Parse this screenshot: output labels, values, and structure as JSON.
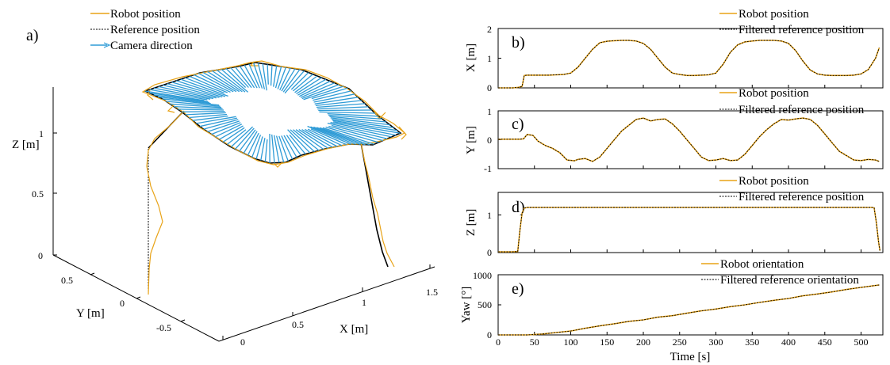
{
  "colors": {
    "robot": "#E8A317",
    "reference": "#000000",
    "camera": "#2E9BD6",
    "axis": "#000000"
  },
  "chart_data": [
    {
      "id": "a",
      "type": "line3d",
      "panel_label": "a)",
      "legend": [
        "Robot position",
        "Reference position",
        "Camera direction"
      ],
      "xlabel": "X [m]",
      "ylabel": "Y [m]",
      "zlabel": "Z [m]",
      "xticks": [
        "0",
        "0.5",
        "1",
        "1.5"
      ],
      "yticks": [
        "0.5",
        "0",
        "-0.5"
      ],
      "zticks": [
        "0",
        "0.5",
        "1"
      ],
      "xlim": [
        0,
        1.8
      ],
      "ylim": [
        -0.9,
        0.8
      ],
      "zlim": [
        0,
        1.35
      ]
    },
    {
      "id": "b",
      "type": "line",
      "panel_label": "b)",
      "ylabel": "X [m]",
      "yticks": [
        "0",
        "1",
        "2"
      ],
      "ylim": [
        0,
        2
      ],
      "xlim": [
        0,
        530
      ],
      "series": [
        {
          "name": "Robot position",
          "x": [
            0,
            20,
            28,
            33,
            36,
            40,
            50,
            60,
            70,
            80,
            90,
            100,
            110,
            120,
            130,
            140,
            150,
            160,
            170,
            180,
            190,
            200,
            210,
            220,
            230,
            240,
            250,
            260,
            270,
            280,
            290,
            300,
            310,
            320,
            330,
            340,
            350,
            360,
            370,
            380,
            390,
            400,
            410,
            420,
            430,
            440,
            450,
            460,
            470,
            480,
            490,
            500,
            510,
            520,
            525
          ],
          "y": [
            0,
            0,
            0.02,
            0.05,
            0.42,
            0.43,
            0.43,
            0.43,
            0.43,
            0.44,
            0.45,
            0.5,
            0.7,
            1.0,
            1.3,
            1.52,
            1.57,
            1.59,
            1.6,
            1.6,
            1.58,
            1.5,
            1.3,
            1.0,
            0.7,
            0.5,
            0.45,
            0.42,
            0.42,
            0.43,
            0.44,
            0.5,
            0.8,
            1.2,
            1.45,
            1.55,
            1.58,
            1.6,
            1.6,
            1.6,
            1.58,
            1.5,
            1.25,
            0.9,
            0.6,
            0.47,
            0.43,
            0.42,
            0.42,
            0.42,
            0.43,
            0.47,
            0.62,
            1.0,
            1.35
          ]
        },
        {
          "name": "Filtered reference position",
          "x": [
            0,
            20,
            28,
            33,
            36,
            40,
            50,
            60,
            70,
            80,
            90,
            100,
            110,
            120,
            130,
            140,
            150,
            160,
            170,
            180,
            190,
            200,
            210,
            220,
            230,
            240,
            250,
            260,
            270,
            280,
            290,
            300,
            310,
            320,
            330,
            340,
            350,
            360,
            370,
            380,
            390,
            400,
            410,
            420,
            430,
            440,
            450,
            460,
            470,
            480,
            490,
            500,
            510,
            520,
            525
          ],
          "y": [
            0,
            0,
            0.02,
            0.05,
            0.42,
            0.43,
            0.43,
            0.43,
            0.43,
            0.44,
            0.45,
            0.5,
            0.7,
            1.0,
            1.3,
            1.52,
            1.57,
            1.59,
            1.6,
            1.6,
            1.58,
            1.5,
            1.3,
            1.0,
            0.7,
            0.5,
            0.45,
            0.42,
            0.42,
            0.43,
            0.44,
            0.5,
            0.8,
            1.2,
            1.45,
            1.55,
            1.58,
            1.6,
            1.6,
            1.6,
            1.58,
            1.5,
            1.25,
            0.9,
            0.6,
            0.47,
            0.43,
            0.42,
            0.42,
            0.42,
            0.43,
            0.47,
            0.62,
            1.0,
            1.35
          ]
        }
      ]
    },
    {
      "id": "c",
      "type": "line",
      "panel_label": "c)",
      "ylabel": "Y [m]",
      "yticks": [
        "-1",
        "0",
        "1"
      ],
      "ylim": [
        -1,
        1
      ],
      "xlim": [
        0,
        530
      ],
      "series": [
        {
          "name": "Robot position",
          "x": [
            0,
            30,
            35,
            40,
            48,
            55,
            65,
            75,
            85,
            95,
            105,
            110,
            120,
            130,
            140,
            150,
            160,
            170,
            180,
            190,
            200,
            210,
            220,
            230,
            240,
            250,
            260,
            270,
            280,
            290,
            300,
            310,
            320,
            330,
            340,
            350,
            360,
            370,
            380,
            390,
            400,
            410,
            420,
            430,
            440,
            450,
            460,
            470,
            480,
            490,
            500,
            510,
            520,
            525
          ],
          "y": [
            0.02,
            0.02,
            0.03,
            0.18,
            0.15,
            -0.05,
            -0.2,
            -0.3,
            -0.45,
            -0.7,
            -0.73,
            -0.68,
            -0.65,
            -0.75,
            -0.6,
            -0.3,
            0.0,
            0.3,
            0.5,
            0.7,
            0.75,
            0.65,
            0.7,
            0.72,
            0.55,
            0.3,
            0.0,
            -0.3,
            -0.6,
            -0.72,
            -0.7,
            -0.65,
            -0.72,
            -0.7,
            -0.5,
            -0.2,
            0.1,
            0.35,
            0.55,
            0.7,
            0.68,
            0.72,
            0.75,
            0.7,
            0.5,
            0.2,
            -0.1,
            -0.4,
            -0.55,
            -0.7,
            -0.72,
            -0.68,
            -0.7,
            -0.75
          ]
        },
        {
          "name": "Filtered reference position",
          "x": [
            0,
            30,
            35,
            40,
            48,
            55,
            65,
            75,
            85,
            95,
            105,
            110,
            120,
            130,
            140,
            150,
            160,
            170,
            180,
            190,
            200,
            210,
            220,
            230,
            240,
            250,
            260,
            270,
            280,
            290,
            300,
            310,
            320,
            330,
            340,
            350,
            360,
            370,
            380,
            390,
            400,
            410,
            420,
            430,
            440,
            450,
            460,
            470,
            480,
            490,
            500,
            510,
            520,
            525
          ],
          "y": [
            0.02,
            0.02,
            0.03,
            0.18,
            0.15,
            -0.05,
            -0.2,
            -0.3,
            -0.45,
            -0.7,
            -0.73,
            -0.68,
            -0.65,
            -0.75,
            -0.6,
            -0.3,
            0.0,
            0.3,
            0.5,
            0.7,
            0.75,
            0.65,
            0.7,
            0.72,
            0.55,
            0.3,
            0.0,
            -0.3,
            -0.6,
            -0.72,
            -0.7,
            -0.65,
            -0.72,
            -0.7,
            -0.5,
            -0.2,
            0.1,
            0.35,
            0.55,
            0.7,
            0.68,
            0.72,
            0.75,
            0.7,
            0.5,
            0.2,
            -0.1,
            -0.4,
            -0.55,
            -0.7,
            -0.72,
            -0.68,
            -0.7,
            -0.75
          ]
        }
      ]
    },
    {
      "id": "d",
      "type": "line",
      "panel_label": "d)",
      "ylabel": "Z [m]",
      "yticks": [
        "0",
        "1"
      ],
      "ylim": [
        0,
        1.6
      ],
      "xlim": [
        0,
        530
      ],
      "series": [
        {
          "name": "Robot position",
          "x": [
            0,
            20,
            27,
            30,
            33,
            36,
            40,
            100,
            200,
            300,
            400,
            500,
            515,
            518,
            521,
            524,
            526
          ],
          "y": [
            0.02,
            0.02,
            0.03,
            0.6,
            1.05,
            1.18,
            1.2,
            1.2,
            1.2,
            1.2,
            1.2,
            1.2,
            1.2,
            1.19,
            0.8,
            0.3,
            0.05
          ]
        },
        {
          "name": "Filtered reference position",
          "x": [
            0,
            20,
            27,
            30,
            33,
            36,
            40,
            100,
            200,
            300,
            400,
            500,
            515,
            518,
            521,
            524,
            526
          ],
          "y": [
            0.02,
            0.02,
            0.03,
            0.6,
            1.05,
            1.18,
            1.2,
            1.2,
            1.2,
            1.2,
            1.2,
            1.2,
            1.2,
            1.19,
            0.8,
            0.3,
            0.05
          ]
        }
      ]
    },
    {
      "id": "e",
      "type": "line",
      "panel_label": "e)",
      "ylabel": "Yaw [°]",
      "yticks": [
        "0",
        "500",
        "1000"
      ],
      "ylim": [
        0,
        1000
      ],
      "xlim": [
        0,
        530
      ],
      "xlabel": "Time [s]",
      "xticks": [
        "0",
        "50",
        "100",
        "150",
        "200",
        "250",
        "300",
        "350",
        "400",
        "450",
        "500"
      ],
      "series": [
        {
          "name": "Robot orientation",
          "x": [
            0,
            40,
            60,
            80,
            100,
            120,
            140,
            160,
            180,
            200,
            220,
            240,
            260,
            280,
            300,
            320,
            340,
            360,
            380,
            400,
            420,
            440,
            460,
            480,
            500,
            525
          ],
          "y": [
            0,
            0,
            15,
            40,
            65,
            110,
            150,
            185,
            225,
            250,
            295,
            320,
            360,
            400,
            430,
            470,
            500,
            540,
            575,
            605,
            650,
            680,
            715,
            755,
            790,
            830
          ]
        },
        {
          "name": "Filtered reference orientation",
          "x": [
            0,
            40,
            60,
            80,
            100,
            120,
            140,
            160,
            180,
            200,
            220,
            240,
            260,
            280,
            300,
            320,
            340,
            360,
            380,
            400,
            420,
            440,
            460,
            480,
            500,
            525
          ],
          "y": [
            0,
            0,
            15,
            40,
            65,
            110,
            150,
            185,
            225,
            250,
            295,
            320,
            360,
            400,
            430,
            470,
            500,
            540,
            575,
            605,
            650,
            680,
            715,
            755,
            790,
            830
          ]
        }
      ]
    }
  ]
}
